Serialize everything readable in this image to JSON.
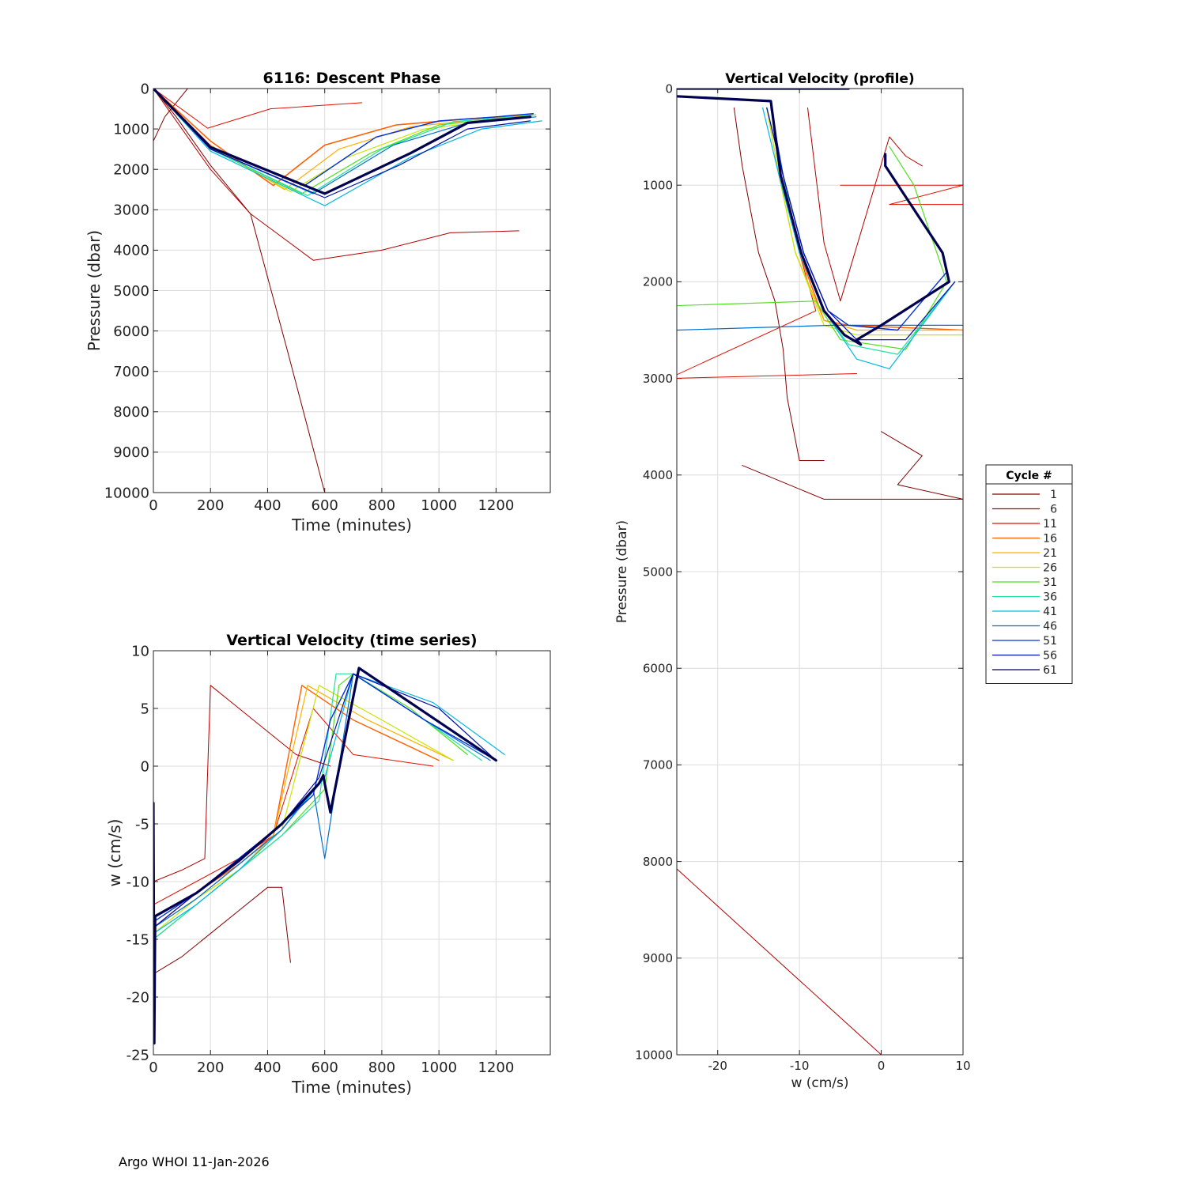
{
  "footer": "Argo WHOI 11-Jan-2026",
  "legend": {
    "title": "Cycle #",
    "entries": [
      {
        "label": "1",
        "color": "#800000"
      },
      {
        "label": "6",
        "color": "#b00000"
      },
      {
        "label": "11",
        "color": "#e01000"
      },
      {
        "label": "16",
        "color": "#ff6000"
      },
      {
        "label": "21",
        "color": "#ffb000"
      },
      {
        "label": "26",
        "color": "#c8e600"
      },
      {
        "label": "31",
        "color": "#50e020"
      },
      {
        "label": "36",
        "color": "#20e0a0"
      },
      {
        "label": "41",
        "color": "#00b8e0"
      },
      {
        "label": "46",
        "color": "#0070d0"
      },
      {
        "label": "51",
        "color": "#0030e0"
      },
      {
        "label": "56",
        "color": "#0010b0"
      },
      {
        "label": "61",
        "color": "#000050"
      }
    ]
  },
  "chart_data": [
    {
      "id": "descent",
      "type": "line",
      "title": "6116: Descent Phase",
      "xlabel": "Time (minutes)",
      "ylabel": "Pressure (dbar)",
      "xlim": [
        0,
        1390
      ],
      "ylim": [
        0,
        10000
      ],
      "y_reversed": true,
      "xticks": [
        0,
        200,
        400,
        600,
        800,
        1000,
        1200
      ],
      "yticks": [
        0,
        1000,
        2000,
        3000,
        4000,
        5000,
        6000,
        7000,
        8000,
        9000,
        10000
      ],
      "grid": true,
      "series": [
        {
          "name": "1",
          "color": "#800000",
          "width": 1,
          "x": [
            0,
            40,
            120
          ],
          "y": [
            1300,
            700,
            0
          ]
        },
        {
          "name": "1b",
          "color": "#800000",
          "width": 1,
          "x": [
            0,
            80,
            200,
            340,
            470,
            600
          ],
          "y": [
            0,
            700,
            1900,
            3100,
            6500,
            10000
          ]
        },
        {
          "name": "6",
          "color": "#b00000",
          "width": 1,
          "x": [
            0,
            100,
            200,
            340,
            560,
            800,
            1040,
            1280
          ],
          "y": [
            0,
            1000,
            2000,
            3100,
            4250,
            4000,
            3570,
            3520
          ]
        },
        {
          "name": "11",
          "color": "#e01000",
          "width": 1,
          "x": [
            0,
            190,
            410,
            730
          ],
          "y": [
            0,
            980,
            500,
            350
          ]
        },
        {
          "name": "16",
          "color": "#ff6000",
          "width": 1.6,
          "x": [
            0,
            200,
            420,
            600,
            850,
            1100,
            1330
          ],
          "y": [
            0,
            1300,
            2400,
            1400,
            900,
            750,
            650
          ]
        },
        {
          "name": "21",
          "color": "#ffb000",
          "width": 1.2,
          "x": [
            0,
            200,
            460,
            650,
            900,
            1150,
            1330
          ],
          "y": [
            0,
            1400,
            2500,
            1500,
            950,
            760,
            650
          ]
        },
        {
          "name": "26",
          "color": "#c8e600",
          "width": 1.2,
          "x": [
            0,
            200,
            480,
            680,
            950,
            1200,
            1330
          ],
          "y": [
            0,
            1450,
            2550,
            1700,
            1000,
            780,
            650
          ]
        },
        {
          "name": "31",
          "color": "#50e020",
          "width": 1.2,
          "x": [
            0,
            200,
            520,
            760,
            1000,
            1250,
            1330
          ],
          "y": [
            0,
            1500,
            2600,
            1600,
            900,
            720,
            650
          ]
        },
        {
          "name": "36",
          "color": "#20e0a0",
          "width": 1.2,
          "x": [
            0,
            200,
            540,
            800,
            1050,
            1300,
            1340
          ],
          "y": [
            0,
            1500,
            2650,
            1500,
            820,
            680,
            650
          ]
        },
        {
          "name": "41",
          "color": "#00b8e0",
          "width": 1.2,
          "x": [
            0,
            200,
            600,
            900,
            1150,
            1360
          ],
          "y": [
            0,
            1550,
            2900,
            1700,
            1000,
            800
          ]
        },
        {
          "name": "46",
          "color": "#0070d0",
          "width": 1.2,
          "x": [
            0,
            200,
            560,
            840,
            1100,
            1340
          ],
          "y": [
            0,
            1500,
            2600,
            1400,
            850,
            700
          ]
        },
        {
          "name": "51",
          "color": "#0030e0",
          "width": 1.4,
          "x": [
            0,
            200,
            530,
            780,
            1000,
            1200,
            1330
          ],
          "y": [
            0,
            1450,
            2400,
            1200,
            800,
            700,
            620
          ]
        },
        {
          "name": "56",
          "color": "#0010b0",
          "width": 1.2,
          "x": [
            0,
            200,
            600,
            860,
            1100,
            1320
          ],
          "y": [
            0,
            1500,
            2700,
            1900,
            1000,
            800
          ]
        },
        {
          "name": "61",
          "color": "#000050",
          "width": 3.2,
          "x": [
            0,
            200,
            600,
            900,
            1100,
            1320
          ],
          "y": [
            0,
            1450,
            2600,
            1600,
            850,
            700
          ]
        }
      ]
    },
    {
      "id": "vts",
      "type": "line",
      "title": "Vertical Velocity (time series)",
      "xlabel": "Time (minutes)",
      "ylabel": "w (cm/s)",
      "xlim": [
        0,
        1390
      ],
      "ylim": [
        -25,
        10
      ],
      "xticks": [
        0,
        200,
        400,
        600,
        800,
        1000,
        1200
      ],
      "yticks": [
        10,
        5,
        0,
        -5,
        -10,
        -15,
        -20,
        -25
      ],
      "grid": true,
      "series": [
        {
          "name": "1",
          "color": "#800000",
          "width": 1,
          "x": [
            0,
            100,
            200,
            300,
            400,
            450,
            480
          ],
          "y": [
            -18,
            -16.5,
            -14.5,
            -12.5,
            -10.5,
            -10.5,
            -17
          ]
        },
        {
          "name": "6",
          "color": "#b00000",
          "width": 1,
          "x": [
            0,
            100,
            180,
            200,
            350,
            500,
            620
          ],
          "y": [
            -10,
            -9,
            -8,
            7,
            4,
            1,
            0
          ]
        },
        {
          "name": "11",
          "color": "#e01000",
          "width": 1,
          "x": [
            0,
            150,
            300,
            420,
            560,
            700,
            980
          ],
          "y": [
            -12,
            -10,
            -8,
            -6,
            5,
            1,
            0
          ]
        },
        {
          "name": "16",
          "color": "#ff6000",
          "width": 1.4,
          "x": [
            0,
            150,
            300,
            420,
            520,
            700,
            1000
          ],
          "y": [
            -14,
            -11,
            -8.5,
            -6,
            7,
            4,
            0.5
          ]
        },
        {
          "name": "21",
          "color": "#ffb000",
          "width": 1.2,
          "x": [
            0,
            150,
            300,
            420,
            540,
            750,
            1050
          ],
          "y": [
            -14,
            -11.5,
            -9,
            -6,
            7,
            4,
            0.5
          ]
        },
        {
          "name": "26",
          "color": "#c8e600",
          "width": 1.2,
          "x": [
            0,
            150,
            300,
            450,
            580,
            800,
            1050
          ],
          "y": [
            -14.5,
            -11.5,
            -9,
            -5.5,
            7,
            4,
            0.5
          ]
        },
        {
          "name": "31",
          "color": "#50e020",
          "width": 1.2,
          "x": [
            0,
            150,
            300,
            450,
            600,
            650,
            700,
            900,
            1100
          ],
          "y": [
            -15,
            -12,
            -9,
            -6,
            -2,
            7,
            8,
            5,
            1
          ]
        },
        {
          "name": "36",
          "color": "#20e0a0",
          "width": 1.2,
          "x": [
            0,
            150,
            300,
            450,
            580,
            640,
            700,
            950,
            1150
          ],
          "y": [
            -15,
            -12,
            -9,
            -6,
            -3,
            8,
            8,
            4,
            0.5
          ]
        },
        {
          "name": "41",
          "color": "#00b8e0",
          "width": 1.2,
          "x": [
            0,
            150,
            300,
            450,
            600,
            700,
            980,
            1230
          ],
          "y": [
            -14.5,
            -12,
            -9,
            -5.5,
            -1,
            8,
            5.5,
            1
          ]
        },
        {
          "name": "46",
          "color": "#0070d0",
          "width": 1.2,
          "x": [
            0,
            150,
            300,
            450,
            560,
            600,
            700,
            950,
            1180
          ],
          "y": [
            -14,
            -11.5,
            -8.5,
            -5.5,
            -2,
            -8,
            8,
            4,
            0.5
          ]
        },
        {
          "name": "51",
          "color": "#0030e0",
          "width": 1.4,
          "x": [
            0,
            150,
            300,
            450,
            560,
            620,
            700,
            950,
            1200
          ],
          "y": [
            -13.5,
            -11,
            -8,
            -5,
            -2.5,
            4,
            8,
            4,
            0.5
          ]
        },
        {
          "name": "56",
          "color": "#0010b0",
          "width": 1.2,
          "x": [
            0,
            150,
            300,
            450,
            580,
            700,
            1000,
            1200
          ],
          "y": [
            -14,
            -11,
            -8,
            -5,
            -1,
            8,
            5,
            0.5
          ]
        },
        {
          "name": "61",
          "color": "#000050",
          "width": 3.2,
          "x": [
            0,
            3,
            6,
            150,
            300,
            450,
            580,
            595,
            600,
            620,
            720,
            960,
            1200
          ],
          "y": [
            -3.2,
            -24,
            -13,
            -11,
            -8.2,
            -5,
            -1.5,
            -0.8,
            -1.5,
            -4,
            8.5,
            4.5,
            0.5
          ]
        }
      ]
    },
    {
      "id": "vprof",
      "type": "line",
      "title": "Vertical Velocity (profile)",
      "xlabel": "w (cm/s)",
      "ylabel": "Pressure (dbar)",
      "xlim": [
        -25,
        10
      ],
      "ylim": [
        0,
        10000
      ],
      "y_reversed": true,
      "xticks": [
        -20,
        -10,
        0,
        10
      ],
      "yticks": [
        0,
        1000,
        2000,
        3000,
        4000,
        5000,
        6000,
        7000,
        8000,
        9000,
        10000
      ],
      "grid": true,
      "series": [
        {
          "name": "1",
          "color": "#800000",
          "width": 1,
          "x": [
            -18,
            -17,
            -15,
            -13,
            -12,
            -11.5,
            -10,
            -7
          ],
          "y": [
            200,
            800,
            1700,
            2200,
            2700,
            3200,
            3850,
            3850
          ]
        },
        {
          "name": "1b",
          "color": "#800000",
          "width": 1,
          "x": [
            -17,
            -7,
            10,
            2,
            5,
            0
          ],
          "y": [
            3900,
            4250,
            4250,
            4100,
            3800,
            3550
          ]
        },
        {
          "name": "6",
          "color": "#b00000",
          "width": 1,
          "x": [
            -26,
            0
          ],
          "y": [
            8000,
            10000
          ]
        },
        {
          "name": "6b",
          "color": "#b00000",
          "width": 1,
          "x": [
            -9,
            -8,
            -7,
            -5,
            1,
            3,
            5
          ],
          "y": [
            200,
            900,
            1600,
            2200,
            500,
            700,
            800
          ]
        },
        {
          "name": "11",
          "color": "#e01000",
          "width": 1,
          "x": [
            -14,
            -12,
            -10,
            -8,
            -26,
            -3
          ],
          "y": [
            200,
            900,
            1700,
            2300,
            3000,
            2950
          ]
        },
        {
          "name": "11b",
          "color": "#e01000",
          "width": 1,
          "x": [
            -5,
            10,
            1,
            10
          ],
          "y": [
            1000,
            1000,
            1200,
            1200
          ]
        },
        {
          "name": "16",
          "color": "#ff6000",
          "width": 1.4,
          "x": [
            -14,
            -12,
            -10,
            -7,
            -4,
            10
          ],
          "y": [
            200,
            900,
            1700,
            2400,
            2450,
            2500
          ]
        },
        {
          "name": "21",
          "color": "#ffb000",
          "width": 1.2,
          "x": [
            -14,
            -12.5,
            -10.5,
            -7,
            -3,
            10
          ],
          "y": [
            200,
            900,
            1700,
            2400,
            2500,
            2500
          ]
        },
        {
          "name": "26",
          "color": "#c8e600",
          "width": 1.2,
          "x": [
            -14,
            -12.5,
            -10.5,
            -7,
            -3,
            10
          ],
          "y": [
            200,
            900,
            1700,
            2450,
            2550,
            2550
          ]
        },
        {
          "name": "31",
          "color": "#50e020",
          "width": 1.2,
          "x": [
            -26,
            -8,
            -5,
            3,
            8,
            4,
            1
          ],
          "y": [
            2250,
            2200,
            2600,
            2700,
            2000,
            1000,
            600
          ]
        },
        {
          "name": "36",
          "color": "#20e0a0",
          "width": 1.2,
          "x": [
            -14,
            -12,
            -10,
            -7,
            -4,
            2,
            9
          ],
          "y": [
            200,
            900,
            1700,
            2300,
            2650,
            2750,
            2000
          ]
        },
        {
          "name": "41",
          "color": "#00b8e0",
          "width": 1.2,
          "x": [
            -14.5,
            -12.5,
            -10,
            -7,
            -3,
            1,
            9
          ],
          "y": [
            200,
            900,
            1700,
            2300,
            2800,
            2900,
            2000
          ]
        },
        {
          "name": "46",
          "color": "#0070d0",
          "width": 1.2,
          "x": [
            -25,
            -6,
            10
          ],
          "y": [
            2500,
            2450,
            2450
          ]
        },
        {
          "name": "51",
          "color": "#0030e0",
          "width": 1.4,
          "x": [
            -13.5,
            -12,
            -9.5,
            -6.5,
            -4,
            2,
            8
          ],
          "y": [
            200,
            900,
            1700,
            2300,
            2450,
            2500,
            1900
          ]
        },
        {
          "name": "56",
          "color": "#0010b0",
          "width": 1.2,
          "x": [
            -14,
            -12,
            -9.5,
            -6.5,
            -3,
            3,
            9
          ],
          "y": [
            200,
            900,
            1700,
            2300,
            2600,
            2600,
            2000
          ]
        },
        {
          "name": "61",
          "color": "#000050",
          "width": 3.2,
          "x": [
            -25,
            -13.5,
            -12.3,
            -9.8,
            -7,
            -4.5,
            -2.5,
            -3,
            0,
            8.3,
            7.5,
            0.5,
            0.5
          ],
          "y": [
            80,
            130,
            900,
            1700,
            2300,
            2550,
            2650,
            2600,
            2450,
            2000,
            1700,
            800,
            680
          ]
        },
        {
          "name": "61b",
          "color": "#000050",
          "width": 3.2,
          "x": [
            -25,
            -4
          ],
          "y": [
            0,
            0
          ]
        }
      ]
    }
  ]
}
